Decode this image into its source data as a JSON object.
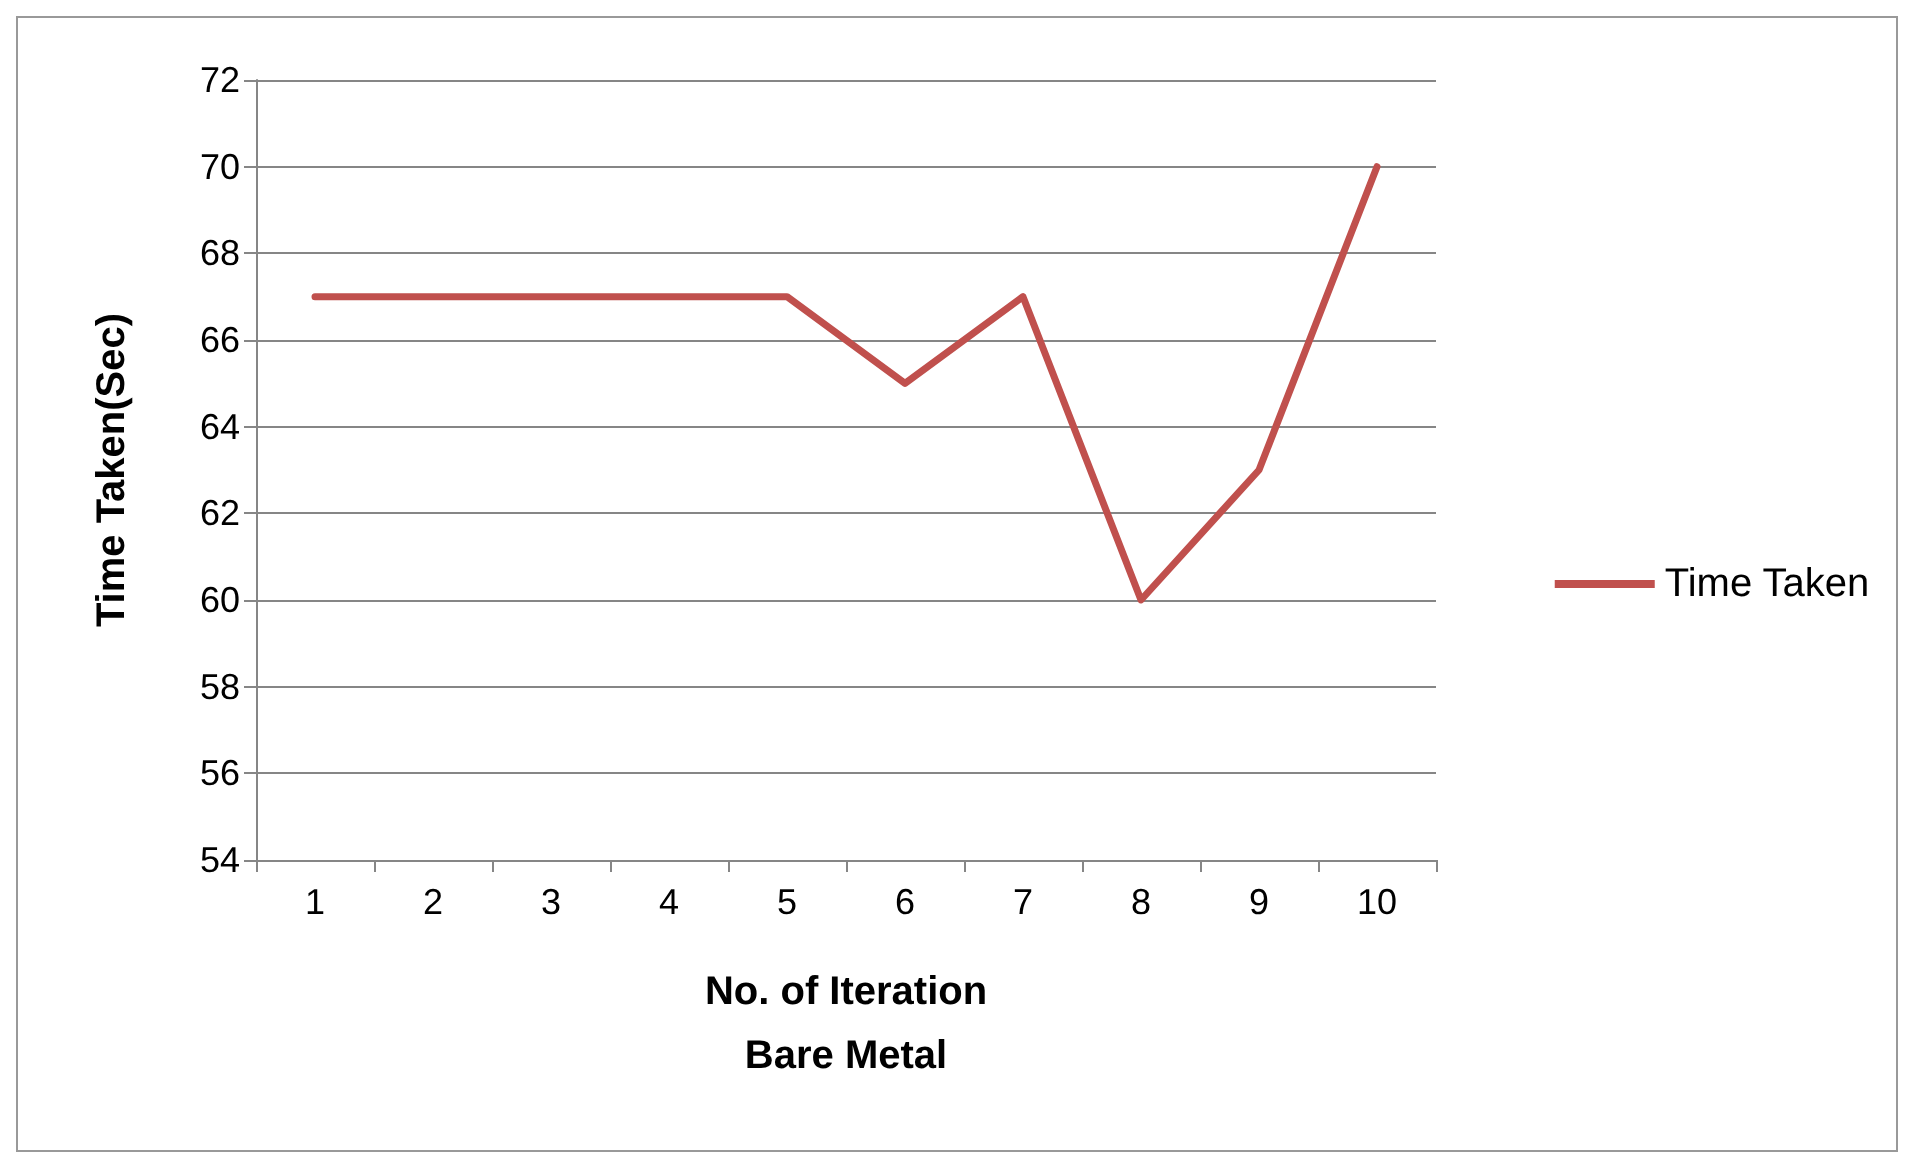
{
  "chart_data": {
    "type": "line",
    "xlabel": "No. of Iteration\nBare Metal",
    "ylabel": "Time Taken(Sec)",
    "categories": [
      "1",
      "2",
      "3",
      "4",
      "5",
      "6",
      "7",
      "8",
      "9",
      "10"
    ],
    "series": [
      {
        "name": "Time Taken",
        "color": "#c0504d",
        "values": [
          67,
          67,
          67,
          67,
          67,
          65,
          67,
          60,
          63,
          70
        ]
      }
    ],
    "ylim": [
      54,
      72
    ],
    "yticks": [
      54,
      56,
      58,
      60,
      62,
      64,
      66,
      68,
      70,
      72
    ],
    "grid": "y",
    "legend": "right",
    "marker": "none",
    "line_style": "solid"
  }
}
